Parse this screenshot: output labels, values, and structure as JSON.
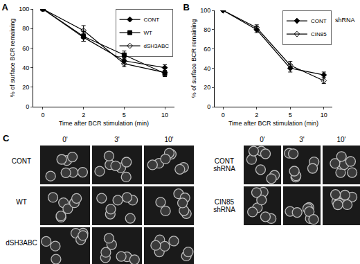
{
  "chart_data": [
    {
      "type": "line",
      "title": "A",
      "x_label": "Time after BCR stimulation (min)",
      "y_label": "% of surface BCR remaining",
      "categories": [
        "0",
        "2",
        "5",
        "10"
      ],
      "ylim": [
        0,
        100
      ],
      "yticks": [
        0,
        20,
        40,
        60,
        80,
        100
      ],
      "legend": "upper right",
      "grid": false,
      "series": [
        {
          "name": "CONT",
          "color": "#000000",
          "marker": "diamond",
          "values": [
            100,
            71,
            47,
            40
          ],
          "errors": [
            0,
            4,
            3,
            3
          ]
        },
        {
          "name": "WT",
          "color": "#000000",
          "marker": "square",
          "values": [
            100,
            72,
            53,
            34
          ],
          "errors": [
            0,
            5,
            4,
            3
          ]
        },
        {
          "name": "dSH3ABC",
          "color": "#000000",
          "marker": "diamond-open",
          "values": [
            100,
            78,
            44,
            35
          ],
          "errors": [
            0,
            5,
            3,
            4
          ]
        }
      ]
    },
    {
      "type": "line",
      "title": "B",
      "x_label": "Time after BCR stimulation (min)",
      "y_label": "% of surface BCR remaining",
      "categories": [
        "0",
        "2",
        "5",
        "10"
      ],
      "ylim": [
        0,
        100
      ],
      "yticks": [
        0,
        20,
        40,
        60,
        80,
        100
      ],
      "legend": "upper right",
      "grid": false,
      "annotations": [
        "shRNA"
      ],
      "series": [
        {
          "name": "CONT",
          "color": "#000000",
          "marker": "diamond",
          "values": [
            100,
            80,
            40,
            33
          ],
          "errors": [
            0,
            3,
            4,
            3
          ]
        },
        {
          "name": "CIN85",
          "color": "#000000",
          "marker": "diamond-open",
          "values": [
            100,
            82,
            43,
            27
          ],
          "errors": [
            0,
            3,
            4,
            3
          ]
        }
      ]
    }
  ],
  "panel_c": {
    "title": "C",
    "groups": [
      {
        "columns": [
          "0'",
          "3'",
          "10'"
        ],
        "rows": [
          "CONT",
          "WT",
          "dSH3ABC"
        ]
      },
      {
        "columns": [
          "0'",
          "3'",
          "10'"
        ],
        "rows": [
          "CONT shRNA",
          "CIN85 shRNA"
        ]
      }
    ]
  }
}
